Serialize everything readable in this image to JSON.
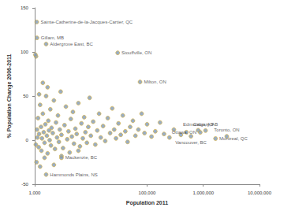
{
  "chart_data": {
    "type": "scatter",
    "x_label": "Population 2011",
    "y_label": "% Population Change 2006-2011",
    "log": "x",
    "grid": false,
    "color": "#7f98b5",
    "marker": "circle",
    "xlim": [
      1000,
      10000000
    ],
    "xticks": [
      {
        "value": 1000,
        "label": "1,000"
      },
      {
        "value": 100000,
        "label": "100,000"
      },
      {
        "value": 1000000,
        "label": "1,000,000"
      },
      {
        "value": 10000000,
        "label": "10,000,000"
      }
    ],
    "ylim": [
      -50,
      150
    ],
    "yticks": [
      -50,
      0,
      50,
      100,
      150
    ],
    "x": [
      1050,
      1100,
      1120,
      1150,
      1180,
      1200,
      1250,
      1300,
      1320,
      1350,
      1400,
      1450,
      1500,
      1550,
      1600,
      1650,
      1700,
      1750,
      1800,
      1850,
      1900,
      1950,
      2000,
      2100,
      2200,
      2300,
      2400,
      2500,
      2600,
      2700,
      2800,
      2900,
      3000,
      3200,
      3400,
      3600,
      3800,
      4000,
      4200,
      4400,
      4600,
      4800,
      5000,
      5300,
      5600,
      6000,
      6400,
      6800,
      7200,
      7600,
      8000,
      8500,
      9000,
      9500,
      10000,
      11000,
      12000,
      13000,
      14000,
      15000,
      16500,
      18000,
      20000,
      22000,
      24000,
      26000,
      28000,
      31000,
      34000,
      37000,
      41000,
      45000,
      50000,
      56000,
      62000,
      70000,
      80000,
      90000,
      100000,
      120000,
      140000,
      170000,
      200000,
      250000,
      300000,
      400000,
      500000,
      1060,
      1030,
      1080,
      1250,
      2200,
      1400,
      1700,
      1200,
      1500,
      3000,
      6000
    ],
    "values": [
      -5,
      12,
      3,
      25,
      -8,
      7,
      40,
      15,
      -12,
      2,
      30,
      9,
      -3,
      18,
      50,
      5,
      -15,
      22,
      11,
      0,
      35,
      -6,
      14,
      8,
      45,
      -10,
      20,
      3,
      28,
      -2,
      12,
      55,
      6,
      -9,
      17,
      38,
      1,
      10,
      -14,
      24,
      4,
      32,
      -4,
      13,
      7,
      42,
      -7,
      19,
      2,
      26,
      9,
      -3,
      15,
      48,
      5,
      21,
      -5,
      11,
      30,
      3,
      16,
      -1,
      25,
      8,
      36,
      12,
      2,
      19,
      6,
      28,
      10,
      -2,
      15,
      22,
      5,
      12,
      30,
      8,
      18,
      4,
      10,
      20,
      7,
      3,
      12,
      6,
      9,
      95,
      97,
      -25,
      -30,
      -28,
      65,
      60,
      52,
      -20,
      -18,
      -12
    ],
    "annotations": [
      {
        "text": "Sainte-Catherine-de-la-Jacques-Cartier, QC",
        "x": 1090,
        "y": 134
      },
      {
        "text": "Gillam, MB",
        "x": 1100,
        "y": 116
      },
      {
        "text": "Aldergrove East, BC",
        "x": 1600,
        "y": 109
      },
      {
        "text": "Stouffville, ON",
        "x": 30000,
        "y": 99
      },
      {
        "text": "Milton, ON",
        "x": 75000,
        "y": 66
      },
      {
        "text": "Edmonton, AB",
        "x": 812201,
        "y": 11.2
      },
      {
        "text": "Calgary, AB",
        "x": 1096833,
        "y": 10.9
      },
      {
        "text": "Ottawa, ON",
        "x": 883391,
        "y": 8.8
      },
      {
        "text": "Vancouver, BC",
        "x": 603502,
        "y": 4.4
      },
      {
        "text": "Toronto, ON",
        "x": 2615060,
        "y": 4.3
      },
      {
        "text": "Montreal, QC",
        "x": 1649519,
        "y": 1.8
      },
      {
        "text": "Mackenzie, BC",
        "x": 3000,
        "y": -20
      },
      {
        "text": "Hammonds Plains, NS",
        "x": 1600,
        "y": -39
      }
    ]
  }
}
